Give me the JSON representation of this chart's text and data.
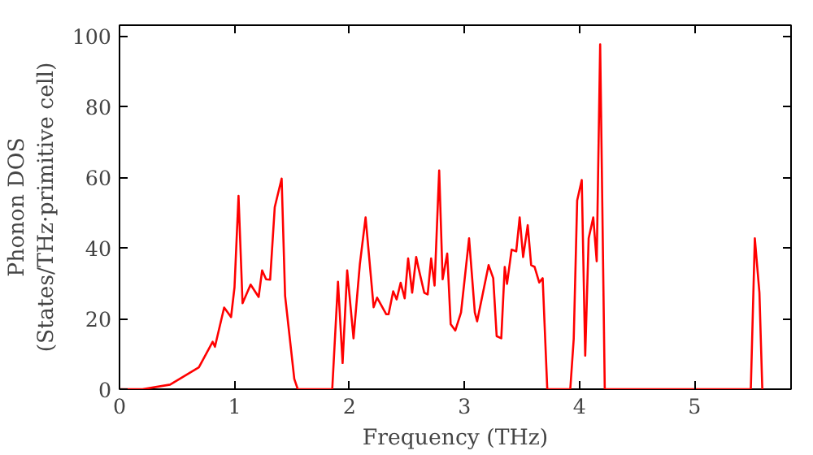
{
  "chart_data": {
    "type": "line",
    "xlabel": "Frequency (THz)",
    "ylabel": "Phonon DOS\n(States/THz·primitive cell)",
    "xlim": [
      0,
      5.84
    ],
    "ylim": [
      0,
      103
    ],
    "xticks": [
      0,
      1,
      2,
      3,
      4,
      5
    ],
    "yticks": [
      0,
      20,
      40,
      60,
      80,
      100
    ],
    "grid": false,
    "line_style": "solid",
    "series": [
      {
        "color": "#ff0000",
        "x": [
          0,
          0.2,
          0.44,
          0.69,
          0.81,
          0.83,
          0.91,
          0.97,
          1.0,
          1.035,
          1.07,
          1.14,
          1.21,
          1.24,
          1.275,
          1.31,
          1.35,
          1.41,
          1.44,
          1.52,
          1.55,
          1.85,
          1.9,
          1.94,
          1.98,
          2.035,
          2.09,
          2.14,
          2.21,
          2.24,
          2.32,
          2.34,
          2.38,
          2.41,
          2.445,
          2.48,
          2.51,
          2.545,
          2.58,
          2.6,
          2.65,
          2.68,
          2.71,
          2.74,
          2.78,
          2.81,
          2.85,
          2.88,
          2.92,
          2.97,
          3.04,
          3.09,
          3.11,
          3.21,
          3.25,
          3.28,
          3.32,
          3.35,
          3.37,
          3.41,
          3.45,
          3.48,
          3.51,
          3.55,
          3.58,
          3.61,
          3.65,
          3.68,
          3.72,
          3.92,
          3.95,
          3.98,
          4.02,
          4.05,
          4.08,
          4.12,
          4.15,
          4.18,
          4.22,
          5.49,
          5.525,
          5.565,
          5.59
        ],
        "values": [
          0,
          0,
          1.3,
          6.2,
          13.4,
          12,
          23.1,
          20.4,
          28.8,
          54.7,
          24.3,
          29.6,
          26.1,
          33.6,
          31.1,
          31,
          51.5,
          59.6,
          26.4,
          2.9,
          0,
          0,
          30.4,
          7.4,
          33.6,
          14.4,
          35.3,
          48.6,
          23.2,
          25.9,
          21.2,
          21.2,
          27.7,
          25.4,
          30.1,
          25.7,
          37,
          27.3,
          37.4,
          34.3,
          27.3,
          26.8,
          37,
          29.3,
          61.9,
          31.1,
          38.4,
          18.4,
          16.6,
          21.7,
          42.7,
          21.7,
          19.2,
          35.1,
          31.4,
          15,
          14.4,
          34.6,
          29.8,
          39.5,
          39,
          48.6,
          37.4,
          46.4,
          35.1,
          34.6,
          30.2,
          31.4,
          0,
          0,
          14.2,
          53.4,
          59.2,
          9.5,
          42.7,
          48.6,
          36.2,
          97.6,
          0,
          0,
          42.7,
          27.3,
          0
        ]
      }
    ]
  }
}
